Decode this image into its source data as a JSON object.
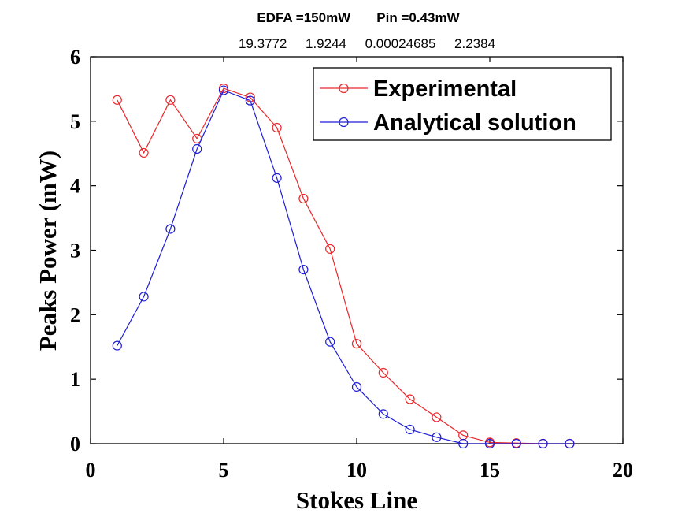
{
  "chart_data": {
    "type": "line",
    "title_line1": "EDFA =150mW       Pin =0.43mW",
    "title_line2": "19.3772     1.9244     0.00024685     2.2384",
    "xlabel": "Stokes Line",
    "ylabel": "Peaks Power (mW)",
    "xlim": [
      0,
      20
    ],
    "ylim": [
      0,
      6
    ],
    "xticks": [
      0,
      5,
      10,
      15,
      20
    ],
    "yticks": [
      0,
      1,
      2,
      3,
      4,
      5,
      6
    ],
    "grid": false,
    "legend_position": "top-right",
    "series": [
      {
        "name": "Experimental",
        "color": "#e8282b",
        "marker": "circle",
        "x": [
          1,
          2,
          3,
          4,
          5,
          6,
          7,
          8,
          9,
          10,
          11,
          12,
          13,
          14,
          15,
          16,
          17,
          18
        ],
        "y": [
          5.33,
          4.51,
          5.33,
          4.73,
          5.51,
          5.37,
          4.9,
          3.8,
          3.02,
          1.55,
          1.1,
          0.69,
          0.41,
          0.13,
          0.02,
          0.01,
          0.0,
          0.0
        ]
      },
      {
        "name": "Analytical solution",
        "color": "#1f1fd6",
        "marker": "circle",
        "x": [
          1,
          2,
          3,
          4,
          5,
          6,
          7,
          8,
          9,
          10,
          11,
          12,
          13,
          14,
          15,
          16,
          17,
          18
        ],
        "y": [
          1.52,
          2.28,
          3.33,
          4.57,
          5.48,
          5.32,
          4.12,
          2.7,
          1.58,
          0.88,
          0.46,
          0.22,
          0.1,
          0.0,
          0.0,
          0.0,
          0.0,
          0.0
        ]
      }
    ]
  }
}
